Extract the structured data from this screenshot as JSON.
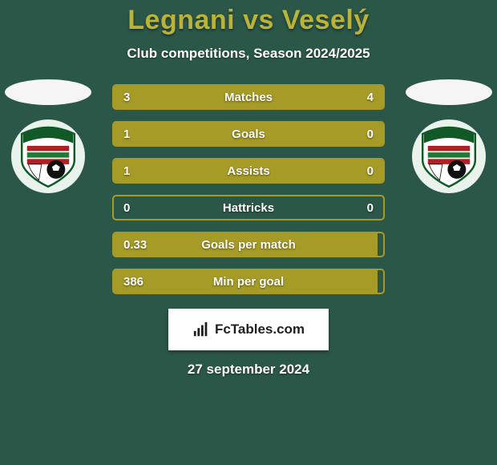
{
  "card": {
    "background_color": "#2b5749",
    "text_color": "#ffffff"
  },
  "title": "Legnani vs Veselý",
  "title_color": "#bab33a",
  "subtitle": "Club competitions, Season 2024/2025",
  "players": {
    "left": {
      "avatar_bg": "#f6f5f5"
    },
    "right": {
      "avatar_bg": "#f6f5f5"
    }
  },
  "badges": {
    "circle_bg": "#e9f2eb",
    "crest": {
      "shield_fill": "#ffffff",
      "shield_stroke": "#115a28",
      "arc_fill": "#115a28",
      "arc_text": "1_FC TATRAN",
      "stripe_red": "#b01f23",
      "stripe_green": "#1f7a39",
      "ball_fill": "#111111"
    }
  },
  "bars": {
    "accent_color": "#a69b27",
    "track_bg": "transparent",
    "text_color": "#ffffff",
    "height": 32,
    "gap": 14,
    "border_radius": 5
  },
  "stats": [
    {
      "label": "Matches",
      "left_val": "3",
      "right_val": "4",
      "left_pct": 42.86,
      "right_pct": 57.14
    },
    {
      "label": "Goals",
      "left_val": "1",
      "right_val": "0",
      "left_pct": 78.0,
      "right_pct": 22.0
    },
    {
      "label": "Assists",
      "left_val": "1",
      "right_val": "0",
      "left_pct": 78.0,
      "right_pct": 22.0
    },
    {
      "label": "Hattricks",
      "left_val": "0",
      "right_val": "0",
      "left_pct": 0.0,
      "right_pct": 0.0
    },
    {
      "label": "Goals per match",
      "left_val": "0.33",
      "right_val": "",
      "left_pct": 98.0,
      "right_pct": 0.0
    },
    {
      "label": "Min per goal",
      "left_val": "386",
      "right_val": "",
      "left_pct": 98.0,
      "right_pct": 0.0
    }
  ],
  "footer": {
    "brand": "FcTables.com",
    "box_bg": "#ffffff",
    "box_text_color": "#1f1f1f"
  },
  "date": "27 september 2024"
}
